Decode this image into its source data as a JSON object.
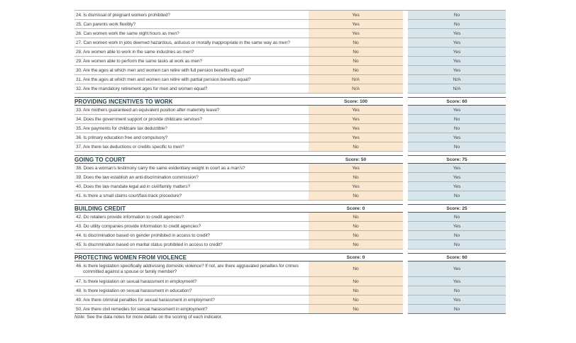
{
  "document": {
    "kind": "country scorecard table continuation",
    "note": {
      "label": "Note:",
      "text": "See the data notes for more details on the scoring of each indicator."
    }
  },
  "colors": {
    "economy1_cell_bg": "#FAE7CF",
    "economy2_cell_bg": "#D8E6EC",
    "section_title_text": "#29454F",
    "section_rule": "#53565A",
    "row_rule": "#B4B7B9"
  },
  "table": {
    "sections": [
      {
        "title": null,
        "score1": null,
        "score2": null,
        "rows": [
          {
            "q": "24. Is dismissal of pregnant workers prohibited?",
            "a1": "Yes",
            "a2": "No"
          },
          {
            "q": "25. Can parents work flexibly?",
            "a1": "Yes",
            "a2": "No"
          },
          {
            "q": "26. Can women work the same night hours as men?",
            "a1": "Yes",
            "a2": "Yes"
          },
          {
            "q": "27. Can women work in jobs deemed hazardous, arduous or morally inappropriate in the same way as men?",
            "a1": "No",
            "a2": "Yes"
          },
          {
            "q": "28. Are women able to work in the same industries as men?",
            "a1": "No",
            "a2": "Yes"
          },
          {
            "q": "29. Are women able to perform the same tasks at work as men?",
            "a1": "No",
            "a2": "Yes"
          },
          {
            "q": "30. Are the ages at which men and women can retire with full pension benefits equal?",
            "a1": "No",
            "a2": "Yes"
          },
          {
            "q": "31. Are the ages at which men and women can retire with partial pension benefits equal?",
            "a1": "N/A",
            "a2": "N/A"
          },
          {
            "q": "32. Are the mandatory retirement ages for men and women equal?",
            "a1": "N/A",
            "a2": "N/A"
          }
        ]
      },
      {
        "title": "PROVIDING INCENTIVES TO WORK",
        "score1": "Score: 100",
        "score2": "Score: 60",
        "rows": [
          {
            "q": "33. Are mothers guaranteed an equivalent position after maternity leave?",
            "a1": "Yes",
            "a2": "Yes"
          },
          {
            "q": "34. Does the government support or provide childcare services?",
            "a1": "Yes",
            "a2": "No"
          },
          {
            "q": "35. Are payments for childcare tax deductible?",
            "a1": "Yes",
            "a2": "No"
          },
          {
            "q": "36. Is primary education free and compulsory?",
            "a1": "Yes",
            "a2": "Yes"
          },
          {
            "q": "37. Are there tax deductions or credits specific to men?",
            "a1": "No",
            "a2": "No"
          }
        ]
      },
      {
        "title": "GOING TO COURT",
        "score1": "Score: 50",
        "score2": "Score: 75",
        "rows": [
          {
            "q": "38. Does a woman's testimony carry the same evidentiary weight in court as a man's?",
            "a1": "Yes",
            "a2": "Yes"
          },
          {
            "q": "39. Does the law establish an anti-discrimination commission?",
            "a1": "No",
            "a2": "Yes"
          },
          {
            "q": "40. Does the law mandate legal aid in civil/family matters?",
            "a1": "Yes",
            "a2": "Yes"
          },
          {
            "q": "41. Is there a small claims court/fast-track procedure?",
            "a1": "No",
            "a2": "No"
          }
        ]
      },
      {
        "title": "BUILDING CREDIT",
        "score1": "Score: 0",
        "score2": "Score: 25",
        "rows": [
          {
            "q": "42. Do retailers provide information to credit agencies?",
            "a1": "No",
            "a2": "No"
          },
          {
            "q": "43. Do utility companies provide information to credit agencies?",
            "a1": "No",
            "a2": "Yes"
          },
          {
            "q": "44. Is discrimination based on gender prohibited in access to credit?",
            "a1": "No",
            "a2": "No"
          },
          {
            "q": "45. Is discrimination based on marital status prohibited in access to credit?",
            "a1": "No",
            "a2": "No"
          }
        ]
      },
      {
        "title": "PROTECTING WOMEN FROM VIOLENCE",
        "score1": "Score: 0",
        "score2": "Score: 60",
        "rows": [
          {
            "q": "46. Is there legislation specifically addressing domestic violence? If not, are there aggravated penalties for crimes committed against a spouse or family member?",
            "a1": "No",
            "a2": "Yes",
            "tall": true
          },
          {
            "q": "47. Is there legislation on sexual harassment in employment?",
            "a1": "No",
            "a2": "Yes"
          },
          {
            "q": "48. Is there legislation on sexual harassment in education?",
            "a1": "No",
            "a2": "No"
          },
          {
            "q": "49. Are there criminal penalties for sexual harassment in employment?",
            "a1": "No",
            "a2": "Yes"
          },
          {
            "q": "50. Are there civil remedies for sexual harassment in employment?",
            "a1": "No",
            "a2": "No"
          }
        ]
      }
    ]
  }
}
